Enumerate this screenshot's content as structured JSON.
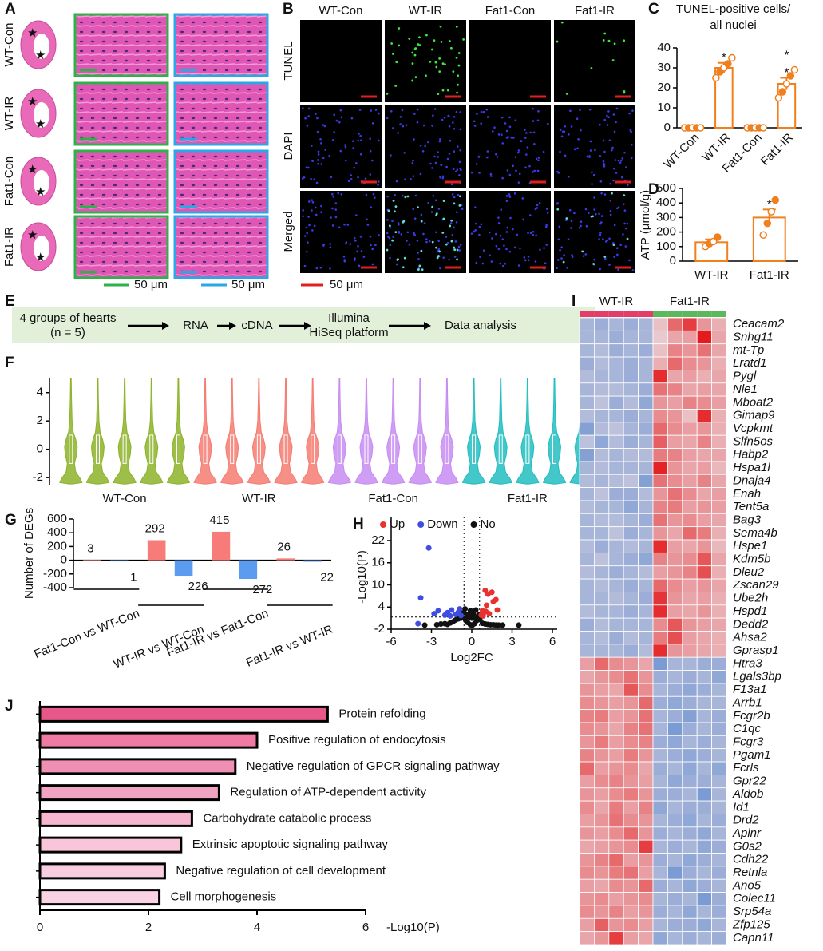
{
  "panels": [
    "A",
    "B",
    "C",
    "D",
    "E",
    "F",
    "G",
    "H",
    "I",
    "J"
  ],
  "histology": {
    "rows": [
      "WT-Con",
      "WT-IR",
      "Fat1-Con",
      "Fat1-IR"
    ],
    "scale_bars": [
      "50 μm",
      "50 μm"
    ]
  },
  "fluorescence": {
    "columns": [
      "WT-Con",
      "WT-IR",
      "Fat1-Con",
      "Fat1-IR"
    ],
    "rows": [
      "TUNEL",
      "DAPI",
      "Merged"
    ],
    "scale_bar": "50 μm"
  },
  "workflow": {
    "steps": [
      [
        "4 groups of hearts",
        "(n = 5)"
      ],
      [
        "RNA"
      ],
      [
        "cDNA"
      ],
      [
        "Illumina",
        "HiSeq platform"
      ],
      [
        "Data analysis"
      ]
    ]
  },
  "chart_data": [
    {
      "type": "bar",
      "title": [
        "TUNEL-positive cells/",
        "all nuclei"
      ],
      "categories": [
        "WT-Con",
        "WT-IR",
        "Fat1-Con",
        "Fat1-IR"
      ],
      "values": [
        0,
        30,
        0,
        22
      ],
      "errors": [
        0.2,
        2.5,
        0.2,
        3
      ],
      "points": [
        [
          0,
          0,
          0,
          0,
          0
        ],
        [
          25,
          28,
          30,
          32,
          35
        ],
        [
          0,
          0,
          0,
          0,
          0
        ],
        [
          15,
          18,
          22,
          26,
          29
        ]
      ],
      "color": "#f07f1e",
      "ylim": [
        0,
        40
      ],
      "yticks": [
        0,
        10,
        20,
        30,
        40
      ],
      "annotations": [
        {
          "text": "*",
          "category": 1,
          "color": "#3a7ab8"
        },
        {
          "text": "*",
          "category": 3,
          "color": "#3a7ab8"
        },
        {
          "text": "*",
          "category": 3,
          "color": "#22b35a"
        }
      ]
    },
    {
      "type": "bar",
      "ylabel": "ATP (μmol/g)",
      "categories": [
        "WT-IR",
        "Fat1-IR"
      ],
      "values": [
        130,
        300
      ],
      "errors": [
        20,
        55
      ],
      "points": [
        [
          100,
          120,
          135,
          165
        ],
        [
          180,
          260,
          340,
          420
        ]
      ],
      "color": "#f07f1e",
      "ylim": [
        0,
        500
      ],
      "yticks": [
        0,
        100,
        200,
        300,
        400,
        500
      ],
      "annotations": [
        {
          "text": "*",
          "category": 1,
          "color": "#22b35a"
        }
      ]
    },
    {
      "type": "violin",
      "series": [
        {
          "name": "WT-Con",
          "color": "#8db32a"
        },
        {
          "name": "WT-IR",
          "color": "#f47c72"
        },
        {
          "name": "Fat1-Con",
          "color": "#c78cf2"
        },
        {
          "name": "Fat1-IR",
          "color": "#22bdc0"
        }
      ],
      "ylim": [
        -2.5,
        5
      ],
      "yticks": [
        -2,
        0,
        2,
        4
      ]
    },
    {
      "type": "bar",
      "ylabel": "Number of DEGs",
      "categories": [
        "Fat1-Con vs WT-Con",
        "WT-IR vs WT-Con",
        "Fat1-IR vs Fat1-Con",
        "Fat1-IR vs WT-IR"
      ],
      "series": [
        {
          "name": "Up",
          "color": "#f77b78",
          "values": [
            3,
            292,
            415,
            26
          ]
        },
        {
          "name": "Down",
          "color": "#5c9cf0",
          "values": [
            -1,
            -226,
            -272,
            -22
          ],
          "value_labels": [
            "1",
            "226",
            "272",
            "22"
          ]
        }
      ],
      "ylim": [
        -400,
        600
      ],
      "yticks": [
        -400,
        -200,
        0,
        200,
        400,
        600
      ]
    },
    {
      "type": "scatter",
      "xlabel": "Log2FC",
      "ylabel": "-Log10(P)",
      "series": [
        {
          "name": "Up",
          "color": "#e8322f",
          "x": [
            0.7,
            0.9,
            1.0,
            1.2,
            1.5,
            1.8,
            0.8,
            1.1,
            0.75,
            1.3,
            1.9,
            1.6,
            0.85,
            1.05
          ],
          "y": [
            1.8,
            2.5,
            8.5,
            7.5,
            8.0,
            6.0,
            3.0,
            4.5,
            2.0,
            2.2,
            3.2,
            5.5,
            1.6,
            2.8
          ]
        },
        {
          "name": "Down",
          "color": "#3f4de0",
          "x": [
            -3.2,
            -3.8,
            -4.0,
            -2.5,
            -1.8,
            -1.5,
            -1.2,
            -0.9,
            -2.0,
            -1.6,
            -1.0,
            -0.8,
            -2.8
          ],
          "y": [
            20,
            6.5,
            -0.5,
            3.0,
            2.5,
            3.2,
            2.0,
            3.5,
            1.8,
            1.6,
            2.6,
            1.7,
            2.2
          ]
        },
        {
          "name": "No",
          "color": "#111111",
          "x": [
            -2.6,
            -2.3,
            -2.0,
            -1.8,
            -1.6,
            -1.4,
            -1.2,
            -1.0,
            -0.8,
            -0.6,
            -0.5,
            -0.4,
            -0.3,
            -0.2,
            -0.1,
            0,
            0.1,
            0.2,
            0.3,
            0.4,
            0.5,
            0.6,
            0.8,
            1.0,
            1.2,
            1.4,
            1.6,
            1.8,
            2.0,
            2.3,
            -0.3,
            0.2,
            -0.1,
            0.35,
            -0.45,
            0.05,
            3.5,
            -3.5
          ],
          "y": [
            -0.8,
            -0.6,
            -0.5,
            -0.7,
            -0.3,
            0,
            0.5,
            0.8,
            1,
            2.5,
            3.5,
            1.2,
            2.0,
            1.5,
            3.0,
            1.0,
            2.2,
            1.2,
            3.2,
            0.8,
            1.8,
            0.6,
            -0.4,
            -0.6,
            -0.7,
            -0.8,
            -0.8,
            -0.9,
            -0.9,
            -0.9,
            -0.2,
            -0.5,
            -0.8,
            0.3,
            0.4,
            -0.9,
            -0.9,
            -0.9
          ]
        }
      ],
      "thresholds": {
        "x": [
          -0.58,
          0.58
        ],
        "y": 1.3
      },
      "xlim": [
        -6,
        6
      ],
      "xticks": [
        -6,
        -3,
        0,
        3,
        6
      ],
      "ylim": [
        -2,
        22
      ],
      "yticks": [
        -2,
        4,
        10,
        16,
        22
      ]
    },
    {
      "type": "heatmap",
      "column_groups": [
        "WT-IR",
        "WT-IR",
        "WT-IR",
        "WT-IR",
        "WT-IR",
        "Fat1-IR",
        "Fat1-IR",
        "Fat1-IR",
        "Fat1-IR",
        "Fat1-IR"
      ],
      "group_colors": {
        "WT-IR": "#e33d6a",
        "Fat1-IR": "#5cb85c"
      },
      "colors": {
        "low": "#7a9bd3",
        "mid": "#eadbe0",
        "high": "#e41a1c"
      },
      "rows": [
        "Ceacam2",
        "Snhg11",
        "mt-Tp",
        "Lratd1",
        "Pygl",
        "Nle1",
        "Mboat2",
        "Gimap9",
        "Vcpkmt",
        "Slfn5os",
        "Habp2",
        "Hspa1l",
        "Dnaja4",
        "Enah",
        "Tent5a",
        "Bag3",
        "Sema4b",
        "Hspe1",
        "Kdm5b",
        "Dleu2",
        "Zscan29",
        "Ube2h",
        "Hspd1",
        "Dedd2",
        "Ahsa2",
        "Gprasp1",
        "Htra3",
        "Lgals3bp",
        "F13a1",
        "Arrb1",
        "Fcgr2b",
        "C1qc",
        "Fcgr3",
        "Pgam1",
        "Fcrls",
        "Gpr22",
        "Aldob",
        "Id1",
        "Drd2",
        "Aplnr",
        "G0s2",
        "Cdh22",
        "Retnla",
        "Ano5",
        "Colec11",
        "Srp54a",
        "Zfp125",
        "Capn11"
      ],
      "values": [
        [
          -0.6,
          -0.7,
          -0.6,
          -0.7,
          -0.6,
          0.3,
          1.3,
          1.8,
          0.8,
          0.5
        ],
        [
          -0.6,
          -0.6,
          -0.7,
          -0.6,
          -0.6,
          0.2,
          0.6,
          0.7,
          2.2,
          0.6
        ],
        [
          -0.6,
          -0.5,
          -0.7,
          -0.6,
          -0.7,
          0.3,
          1.0,
          0.8,
          1.2,
          0.6
        ],
        [
          -0.7,
          -0.5,
          -0.6,
          -0.7,
          -0.6,
          0.5,
          1.3,
          0.9,
          0.8,
          0.5
        ],
        [
          -0.5,
          -0.6,
          -0.6,
          -0.7,
          -0.6,
          2.0,
          0.6,
          0.7,
          0.5,
          0.6
        ],
        [
          -0.6,
          -0.5,
          -0.5,
          -0.6,
          -0.7,
          1.2,
          1.0,
          0.6,
          0.7,
          0.6
        ],
        [
          -0.6,
          -0.4,
          -0.7,
          -0.5,
          -0.8,
          0.8,
          0.7,
          1.0,
          0.9,
          0.7
        ],
        [
          -0.5,
          -0.6,
          -0.6,
          -0.7,
          -0.6,
          0.9,
          0.8,
          0.3,
          2.0,
          0.5
        ],
        [
          -0.9,
          -0.5,
          -0.4,
          -0.6,
          -0.7,
          1.3,
          0.9,
          0.7,
          0.8,
          0.5
        ],
        [
          -0.4,
          -0.8,
          -0.5,
          -0.7,
          -0.6,
          1.4,
          0.7,
          0.6,
          1.0,
          0.5
        ],
        [
          -0.9,
          -0.5,
          -0.6,
          -0.5,
          -0.5,
          1.1,
          1.0,
          0.7,
          0.6,
          0.6
        ],
        [
          -0.6,
          -0.5,
          -0.6,
          -0.6,
          -0.6,
          2.1,
          0.8,
          0.6,
          0.7,
          0.4
        ],
        [
          -0.5,
          -0.6,
          -0.5,
          -0.4,
          -0.9,
          1.2,
          0.9,
          0.7,
          1.0,
          0.6
        ],
        [
          -0.6,
          -0.4,
          -0.7,
          -0.7,
          -0.5,
          0.8,
          1.2,
          0.9,
          0.6,
          0.7
        ],
        [
          -0.5,
          -0.6,
          -0.6,
          -0.8,
          -0.6,
          1.0,
          1.1,
          0.7,
          0.8,
          0.7
        ],
        [
          -0.6,
          -0.5,
          -0.5,
          -0.6,
          -0.7,
          1.2,
          0.8,
          0.9,
          0.7,
          0.6
        ],
        [
          -0.6,
          -0.6,
          -0.4,
          -0.7,
          -0.6,
          0.8,
          0.6,
          1.3,
          1.1,
          0.5
        ],
        [
          -0.5,
          -0.7,
          -0.6,
          -0.5,
          -0.6,
          2.0,
          0.7,
          0.6,
          0.8,
          0.4
        ],
        [
          -0.6,
          -0.4,
          -0.6,
          -0.7,
          -0.8,
          1.0,
          0.8,
          0.9,
          1.5,
          0.6
        ],
        [
          -0.5,
          -0.6,
          -0.7,
          -0.6,
          -0.5,
          0.7,
          0.8,
          1.0,
          1.6,
          0.5
        ],
        [
          -0.6,
          -0.5,
          -0.6,
          -0.7,
          -0.6,
          1.3,
          0.9,
          0.7,
          0.8,
          0.6
        ],
        [
          -0.6,
          -0.6,
          -0.5,
          -0.6,
          -0.7,
          1.9,
          0.8,
          0.6,
          0.7,
          0.5
        ],
        [
          -0.5,
          -0.6,
          -0.6,
          -0.7,
          -0.6,
          2.0,
          0.7,
          0.6,
          0.8,
          0.5
        ],
        [
          -0.7,
          -0.5,
          -0.6,
          -0.6,
          -0.6,
          0.9,
          1.5,
          0.8,
          0.7,
          0.6
        ],
        [
          -0.6,
          -0.5,
          -0.7,
          -0.5,
          -0.6,
          1.1,
          1.6,
          0.7,
          0.6,
          0.5
        ],
        [
          -0.6,
          -0.6,
          -0.6,
          -0.7,
          -0.5,
          2.0,
          0.8,
          0.7,
          0.6,
          0.5
        ],
        [
          0.7,
          1.3,
          0.9,
          0.8,
          0.6,
          -1.0,
          -0.6,
          -0.6,
          -0.7,
          -0.7
        ],
        [
          0.6,
          0.8,
          0.9,
          1.2,
          0.8,
          -0.7,
          -0.6,
          -0.7,
          -0.6,
          -0.8
        ],
        [
          0.8,
          0.7,
          0.6,
          1.5,
          0.9,
          -0.6,
          -0.7,
          -0.8,
          -0.7,
          -0.6
        ],
        [
          0.9,
          0.8,
          0.7,
          0.8,
          1.3,
          -0.7,
          -0.8,
          -0.7,
          -0.6,
          -0.6
        ],
        [
          1.0,
          1.1,
          0.7,
          0.8,
          1.2,
          -0.6,
          -0.7,
          -0.9,
          -0.6,
          -0.7
        ],
        [
          0.9,
          0.8,
          0.6,
          1.0,
          1.2,
          -0.6,
          -1.0,
          -0.7,
          -0.6,
          -0.7
        ],
        [
          0.8,
          1.1,
          0.7,
          0.9,
          1.0,
          -0.7,
          -0.8,
          -0.6,
          -0.7,
          -0.6
        ],
        [
          1.0,
          0.8,
          0.7,
          1.1,
          0.8,
          -0.6,
          -0.7,
          -0.8,
          -0.7,
          -0.6
        ],
        [
          1.3,
          0.7,
          0.8,
          0.9,
          0.6,
          -0.7,
          -0.6,
          -0.8,
          -0.6,
          -0.8
        ],
        [
          0.7,
          0.9,
          1.0,
          0.8,
          0.7,
          -0.6,
          -0.8,
          -0.7,
          -0.7,
          -0.6
        ],
        [
          0.8,
          0.7,
          0.9,
          1.1,
          0.8,
          -0.7,
          -0.7,
          -0.6,
          -1.0,
          -0.6
        ],
        [
          0.9,
          0.6,
          1.1,
          0.7,
          1.0,
          -0.8,
          -0.6,
          -0.7,
          -0.7,
          -0.6
        ],
        [
          0.7,
          0.8,
          1.2,
          0.9,
          0.8,
          -0.6,
          -0.7,
          -0.8,
          -0.6,
          -0.7
        ],
        [
          0.8,
          0.7,
          0.9,
          1.3,
          0.8,
          -0.7,
          -0.6,
          -0.7,
          -0.8,
          -0.6
        ],
        [
          0.6,
          0.7,
          0.8,
          0.9,
          1.8,
          -0.6,
          -0.7,
          -0.6,
          -0.8,
          -0.7
        ],
        [
          0.8,
          1.0,
          1.3,
          0.7,
          0.8,
          -0.7,
          -0.6,
          -0.8,
          -0.7,
          -0.6
        ],
        [
          0.9,
          0.8,
          1.1,
          1.2,
          0.7,
          -0.6,
          -1.0,
          -0.7,
          -0.6,
          -0.7
        ],
        [
          0.7,
          0.6,
          0.9,
          0.8,
          1.3,
          -0.7,
          -0.6,
          -0.8,
          -0.7,
          -0.6
        ],
        [
          0.8,
          0.9,
          0.7,
          0.8,
          0.9,
          -0.6,
          -0.7,
          -0.6,
          -1.0,
          -0.7
        ],
        [
          0.9,
          0.8,
          1.0,
          0.7,
          0.8,
          -0.7,
          -0.6,
          -0.8,
          -0.6,
          -0.7
        ],
        [
          0.7,
          1.4,
          0.8,
          0.9,
          0.7,
          -0.6,
          -0.7,
          -0.7,
          -0.8,
          -0.6
        ],
        [
          0.6,
          0.8,
          1.8,
          0.7,
          0.6,
          -0.8,
          -0.6,
          -0.7,
          -0.6,
          -0.7
        ]
      ]
    },
    {
      "type": "barh",
      "xlabel": "-Log10(P)",
      "categories": [
        "Protein refolding",
        "Positive regulation of endocytosis",
        "Negative regulation of GPCR signaling pathway",
        "Regulation of ATP-dependent activity",
        "Carbohydrate catabolic process",
        "Extrinsic apoptotic signaling pathway",
        "Negative regulation of cell development",
        "Cell morphogenesis"
      ],
      "values": [
        5.3,
        4.0,
        3.6,
        3.3,
        2.8,
        2.6,
        2.3,
        2.2
      ],
      "colors": [
        "#e8578a",
        "#ef7aa4",
        "#f08fb4",
        "#f3a3c2",
        "#f6b6cf",
        "#f8c5d9",
        "#f8cde0",
        "#f9d3e4"
      ],
      "xlim": [
        0,
        6
      ],
      "xticks": [
        0,
        2,
        4,
        6
      ]
    }
  ]
}
